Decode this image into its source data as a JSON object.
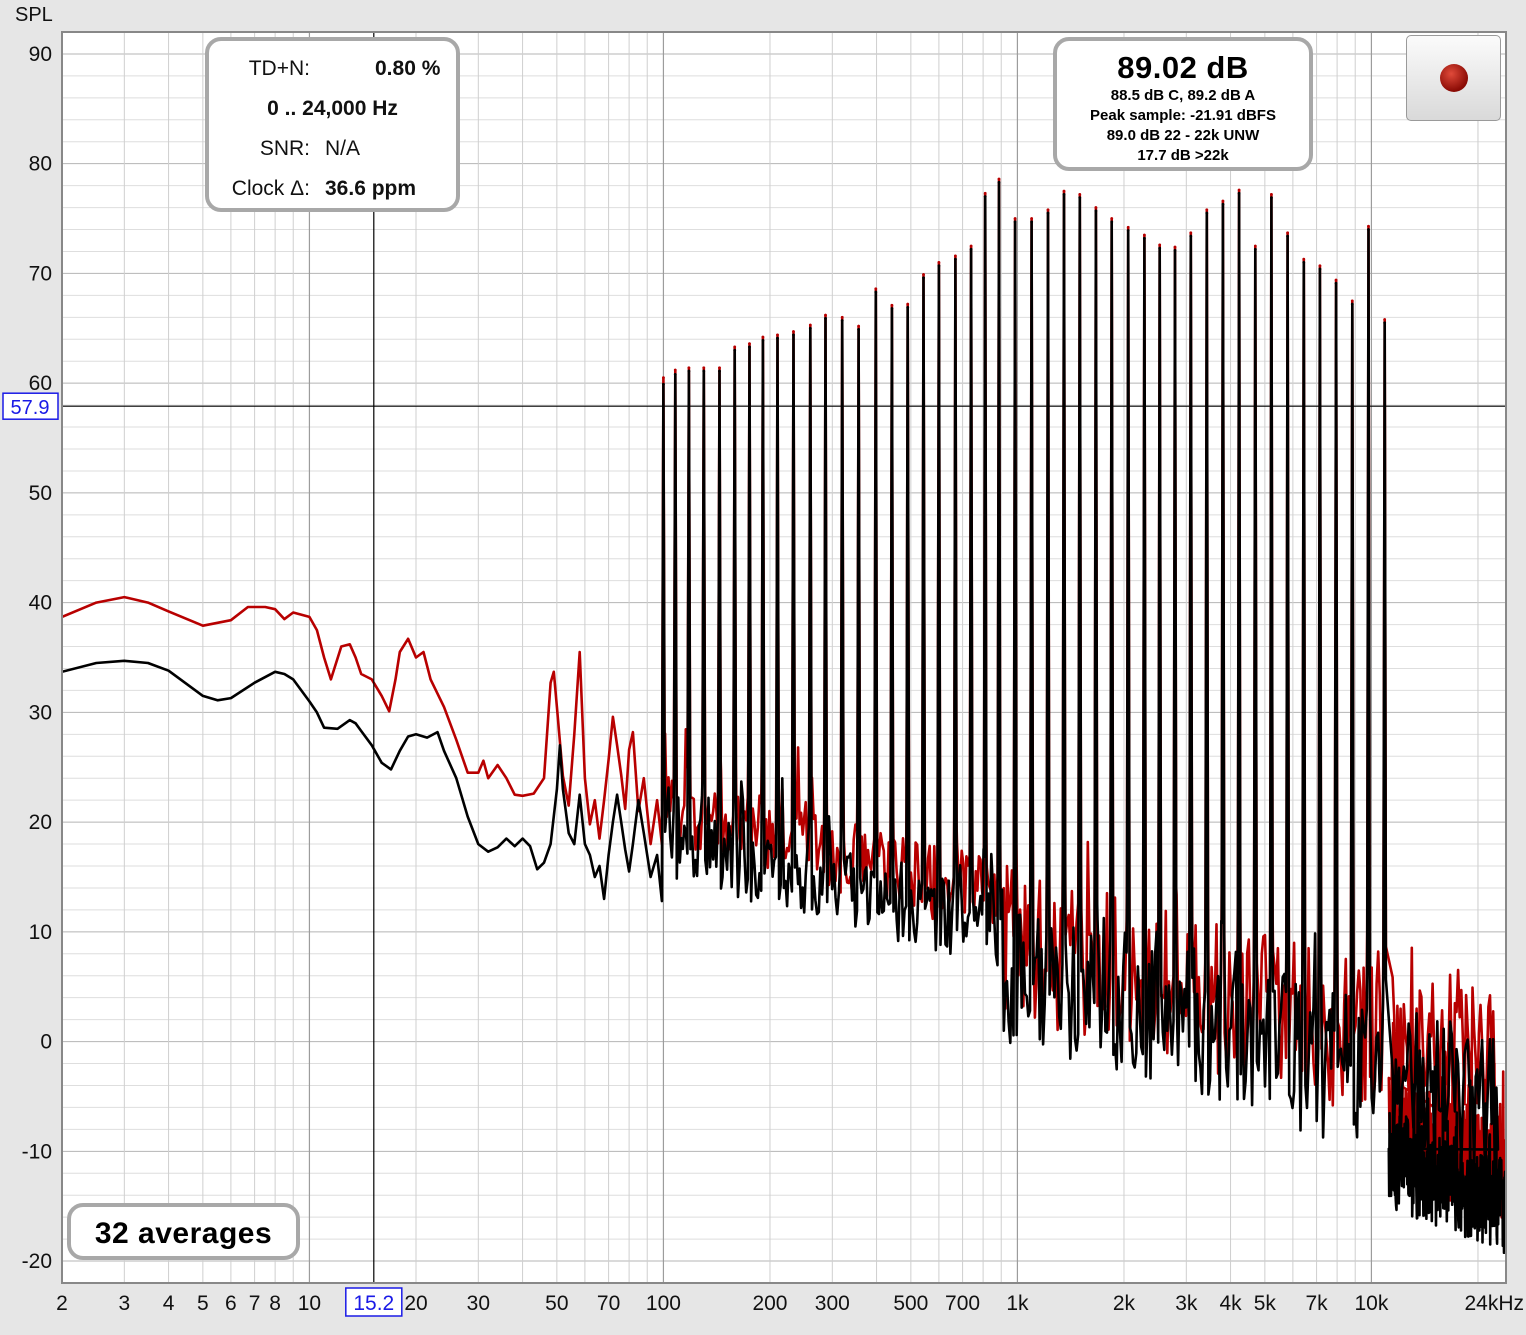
{
  "chart_data": {
    "type": "line",
    "ylabel": "SPL",
    "xlabel": "",
    "x_scale": "log",
    "xlim": [
      2,
      24000
    ],
    "ylim": [
      -22,
      92
    ],
    "y_ticks": [
      90,
      80,
      70,
      60,
      50,
      40,
      30,
      20,
      10,
      0,
      -10,
      -20
    ],
    "y_tick_labels": [
      "90",
      "80",
      "70",
      "60",
      "50",
      "40",
      "30",
      "20",
      "10",
      "0",
      "-10",
      "-20"
    ],
    "x_ticks": [
      2,
      3,
      4,
      5,
      6,
      7,
      8,
      10,
      20,
      30,
      50,
      70,
      100,
      200,
      300,
      500,
      700,
      1000,
      2000,
      3000,
      4000,
      5000,
      7000,
      10000,
      24000
    ],
    "x_tick_labels": [
      "2",
      "3",
      "4",
      "5",
      "6",
      "7",
      "8",
      "10",
      "20",
      "30",
      "50",
      "70",
      "100",
      "200",
      "300",
      "500",
      "700",
      "1k",
      "2k",
      "3k",
      "4k",
      "5k",
      "7k",
      "10k",
      "24kHz"
    ],
    "grid": true,
    "cursor": {
      "x": 15.2,
      "y": 57.9,
      "x_label": "15.2",
      "y_label": "57.9"
    },
    "series": [
      {
        "color": "#b80000",
        "low_freq_curve": [
          [
            2,
            38.7
          ],
          [
            2.5,
            40
          ],
          [
            3,
            40.5
          ],
          [
            3.5,
            40
          ],
          [
            4,
            39.2
          ],
          [
            5,
            37.9
          ],
          [
            6,
            38.4
          ],
          [
            6.7,
            39.6
          ],
          [
            7.5,
            39.6
          ],
          [
            8,
            39.4
          ],
          [
            8.5,
            38.5
          ],
          [
            9,
            39.1
          ],
          [
            10,
            38.7
          ],
          [
            10.5,
            37.5
          ],
          [
            11,
            35
          ],
          [
            11.5,
            33
          ],
          [
            12.3,
            36
          ],
          [
            13,
            36.2
          ],
          [
            13.5,
            35
          ],
          [
            14,
            33.5
          ],
          [
            15,
            33
          ],
          [
            16,
            31.5
          ],
          [
            16.8,
            30.1
          ],
          [
            17.5,
            33
          ],
          [
            18,
            35.5
          ],
          [
            19,
            36.7
          ],
          [
            20,
            35
          ],
          [
            21,
            35.5
          ],
          [
            22,
            33
          ],
          [
            24,
            30.5
          ],
          [
            26,
            27.5
          ],
          [
            28,
            24.5
          ],
          [
            30,
            24.5
          ],
          [
            31,
            25.6
          ],
          [
            32,
            24
          ],
          [
            34,
            25.2
          ],
          [
            36,
            24
          ],
          [
            38,
            22.5
          ],
          [
            40,
            22.4
          ],
          [
            43,
            22.6
          ],
          [
            46,
            24
          ],
          [
            48,
            32.7
          ],
          [
            49,
            33.7
          ],
          [
            50,
            30.5
          ],
          [
            52,
            24.2
          ],
          [
            54,
            21.5
          ],
          [
            56,
            28
          ],
          [
            58,
            35.5
          ],
          [
            60,
            24
          ],
          [
            62,
            19.8
          ],
          [
            64,
            22
          ],
          [
            66,
            18.5
          ],
          [
            68,
            22
          ],
          [
            70,
            25.7
          ],
          [
            72,
            29.6
          ],
          [
            74,
            27
          ],
          [
            76,
            24.3
          ],
          [
            78,
            21.2
          ],
          [
            80,
            26.6
          ],
          [
            82,
            28.2
          ],
          [
            85,
            21
          ],
          [
            88,
            24
          ],
          [
            92,
            18
          ],
          [
            96,
            22
          ],
          [
            99,
            18
          ]
        ],
        "harmonic_peaks": [
          [
            100,
            60.5
          ],
          [
            108,
            61.2
          ],
          [
            118,
            61.4
          ],
          [
            130,
            61.4
          ],
          [
            144,
            61.4
          ],
          [
            159,
            63.3
          ],
          [
            175,
            63.6
          ],
          [
            191,
            64.2
          ],
          [
            210,
            64.4
          ],
          [
            233,
            64.7
          ],
          [
            260,
            65.3
          ],
          [
            287,
            66.2
          ],
          [
            320,
            66
          ],
          [
            356,
            65.2
          ],
          [
            398,
            68.6
          ],
          [
            442,
            67.1
          ],
          [
            490,
            67.2
          ],
          [
            543,
            69.9
          ],
          [
            600,
            71
          ],
          [
            668,
            71.6
          ],
          [
            740,
            72.5
          ],
          [
            811,
            77.3
          ],
          [
            887,
            78.6
          ],
          [
            985,
            75
          ],
          [
            1097,
            75
          ],
          [
            1220,
            75.8
          ],
          [
            1354,
            77.5
          ],
          [
            1500,
            77.2
          ],
          [
            1666,
            76
          ],
          [
            1847,
            75
          ],
          [
            2056,
            74.2
          ],
          [
            2284,
            73.5
          ],
          [
            2523,
            72.6
          ],
          [
            2787,
            72.4
          ],
          [
            3088,
            73.7
          ],
          [
            3427,
            75.8
          ],
          [
            3807,
            76.6
          ],
          [
            4229,
            77.6
          ],
          [
            4700,
            72.5
          ],
          [
            5218,
            77.2
          ],
          [
            5798,
            73.7
          ],
          [
            6440,
            71.3
          ],
          [
            7154,
            70.7
          ],
          [
            7946,
            69.4
          ],
          [
            8830,
            67.5
          ],
          [
            9810,
            74.3
          ],
          [
            10900,
            65.8
          ]
        ]
      },
      {
        "color": "#000000",
        "low_freq_curve": [
          [
            2,
            33.7
          ],
          [
            2.5,
            34.5
          ],
          [
            3,
            34.7
          ],
          [
            3.5,
            34.5
          ],
          [
            4,
            33.8
          ],
          [
            5,
            31.5
          ],
          [
            5.5,
            31.1
          ],
          [
            6,
            31.3
          ],
          [
            7,
            32.7
          ],
          [
            8,
            33.7
          ],
          [
            8.5,
            33.5
          ],
          [
            9,
            33
          ],
          [
            10,
            31
          ],
          [
            10.5,
            30
          ],
          [
            11,
            28.6
          ],
          [
            12,
            28.5
          ],
          [
            13,
            29.3
          ],
          [
            13.5,
            29
          ],
          [
            14,
            28.3
          ],
          [
            15,
            27
          ],
          [
            16,
            25.4
          ],
          [
            17,
            24.8
          ],
          [
            18,
            26.5
          ],
          [
            19,
            27.8
          ],
          [
            20,
            28
          ],
          [
            21.5,
            27.7
          ],
          [
            23,
            28.2
          ],
          [
            24,
            26.5
          ],
          [
            26,
            24
          ],
          [
            28,
            20.5
          ],
          [
            30,
            18
          ],
          [
            32,
            17.3
          ],
          [
            34,
            17.7
          ],
          [
            36,
            18.5
          ],
          [
            38,
            17.8
          ],
          [
            40,
            18.5
          ],
          [
            42,
            17.8
          ],
          [
            44,
            15.7
          ],
          [
            46,
            16.3
          ],
          [
            48,
            18
          ],
          [
            50,
            23
          ],
          [
            51,
            27
          ],
          [
            52,
            23
          ],
          [
            54,
            19
          ],
          [
            56,
            18
          ],
          [
            58,
            22.5
          ],
          [
            60,
            18
          ],
          [
            62,
            17
          ],
          [
            64,
            15
          ],
          [
            66,
            16
          ],
          [
            68,
            13
          ],
          [
            70,
            17
          ],
          [
            72,
            20
          ],
          [
            74,
            22.5
          ],
          [
            76,
            20
          ],
          [
            78,
            17.5
          ],
          [
            80,
            15.5
          ],
          [
            82,
            18
          ],
          [
            85,
            22
          ],
          [
            88,
            19
          ],
          [
            92,
            15
          ],
          [
            96,
            17
          ],
          [
            99,
            12.8
          ]
        ],
        "harmonic_peaks": [
          [
            100,
            59.9
          ],
          [
            108,
            60.8
          ],
          [
            118,
            61.1
          ],
          [
            130,
            61.1
          ],
          [
            144,
            61.1
          ],
          [
            159,
            63
          ],
          [
            175,
            63.3
          ],
          [
            191,
            63.9
          ],
          [
            210,
            64.1
          ],
          [
            233,
            64.4
          ],
          [
            260,
            65
          ],
          [
            287,
            65.9
          ],
          [
            320,
            65.7
          ],
          [
            356,
            64.9
          ],
          [
            398,
            68.3
          ],
          [
            442,
            66.8
          ],
          [
            490,
            66.9
          ],
          [
            543,
            69.6
          ],
          [
            600,
            70.7
          ],
          [
            668,
            71.3
          ],
          [
            740,
            72.2
          ],
          [
            811,
            77
          ],
          [
            887,
            78.3
          ],
          [
            985,
            74.7
          ],
          [
            1097,
            74.7
          ],
          [
            1220,
            75.5
          ],
          [
            1354,
            77.2
          ],
          [
            1500,
            76.9
          ],
          [
            1666,
            75.7
          ],
          [
            1847,
            74.7
          ],
          [
            2056,
            73.9
          ],
          [
            2284,
            73.2
          ],
          [
            2523,
            72.3
          ],
          [
            2787,
            72.1
          ],
          [
            3088,
            73.4
          ],
          [
            3427,
            75.5
          ],
          [
            3807,
            76.3
          ],
          [
            4229,
            77.3
          ],
          [
            4700,
            72.2
          ],
          [
            5218,
            76.9
          ],
          [
            5798,
            73.4
          ],
          [
            6440,
            71
          ],
          [
            7154,
            70.4
          ],
          [
            7946,
            69.1
          ],
          [
            8830,
            67.2
          ],
          [
            9810,
            74
          ],
          [
            10900,
            65.5
          ]
        ]
      }
    ]
  },
  "stats_panel": {
    "tdn_label": "TD+N:",
    "tdn_value": "0.80 %",
    "range": "0 .. 24,000 Hz",
    "snr_label": "SNR:",
    "snr_value": "N/A",
    "clock_label": "Clock Δ:",
    "clock_value": "36.6 ppm"
  },
  "level_panel": {
    "main": "89.02 dB",
    "line1": "88.5 dB C, 89.2 dB A",
    "line2": "Peak sample: -21.91 dBFS",
    "line3": "89.0 dB 22 - 22k UNW",
    "line4": "17.7 dB >22k"
  },
  "averages_label": "32 averages",
  "record_button": {
    "icon": "record-icon"
  }
}
